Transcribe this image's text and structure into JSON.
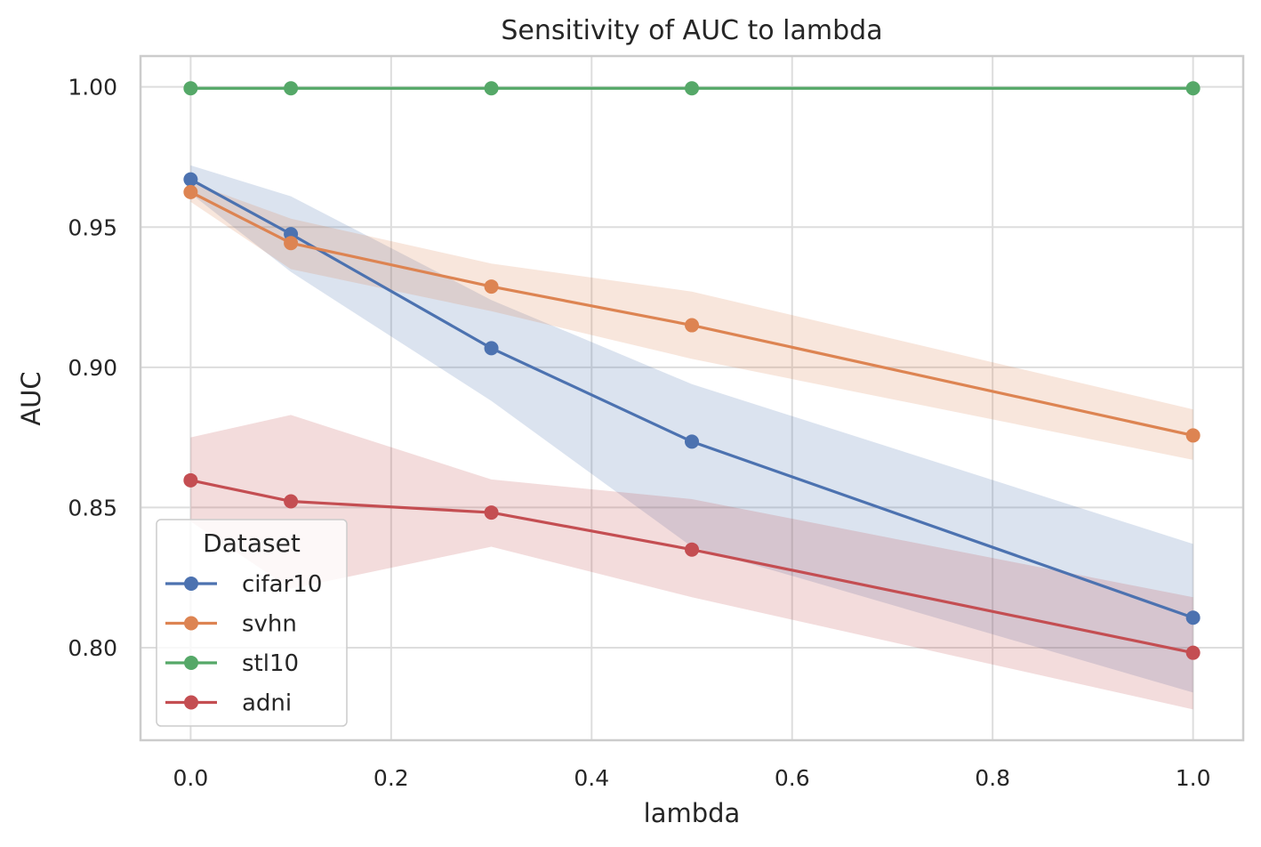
{
  "chart_data": {
    "type": "line",
    "title": "Sensitivity of AUC to lambda",
    "xlabel": "lambda",
    "ylabel": "AUC",
    "xlim": [
      -0.05,
      1.05
    ],
    "ylim": [
      0.767,
      1.011
    ],
    "xticks": [
      0.0,
      0.2,
      0.4,
      0.6,
      0.8,
      1.0
    ],
    "xtick_labels": [
      "0.0",
      "0.2",
      "0.4",
      "0.6",
      "0.8",
      "1.0"
    ],
    "yticks": [
      0.8,
      0.85,
      0.9,
      0.95,
      1.0
    ],
    "ytick_labels": [
      "0.80",
      "0.85",
      "0.90",
      "0.95",
      "1.00"
    ],
    "grid": true,
    "legend": {
      "title": "Dataset",
      "position": "lower-left"
    },
    "x": [
      0.0,
      0.1,
      0.3,
      0.5,
      1.0
    ],
    "series": [
      {
        "name": "cifar10",
        "color": "#4c72b0",
        "values": [
          0.967,
          0.9475,
          0.9068,
          0.8735,
          0.8107
        ],
        "band_upper": [
          0.972,
          0.961,
          0.924,
          0.894,
          0.837
        ],
        "band_lower": [
          0.962,
          0.934,
          0.888,
          0.836,
          0.784
        ]
      },
      {
        "name": "svhn",
        "color": "#dd8452",
        "values": [
          0.9625,
          0.9443,
          0.9288,
          0.915,
          0.8757
        ],
        "band_upper": [
          0.966,
          0.953,
          0.937,
          0.927,
          0.885
        ],
        "band_lower": [
          0.959,
          0.935,
          0.92,
          0.903,
          0.867
        ]
      },
      {
        "name": "stl10",
        "color": "#55a868",
        "values": [
          0.9995,
          0.9995,
          0.9995,
          0.9995,
          0.9995
        ],
        "band_upper": [
          0.9995,
          0.9995,
          0.9995,
          0.9995,
          0.9995
        ],
        "band_lower": [
          0.9995,
          0.9995,
          0.9995,
          0.9995,
          0.9995
        ]
      },
      {
        "name": "adni",
        "color": "#c44e52",
        "values": [
          0.8597,
          0.8522,
          0.8482,
          0.835,
          0.7982
        ],
        "band_upper": [
          0.875,
          0.883,
          0.86,
          0.853,
          0.818
        ],
        "band_lower": [
          0.845,
          0.821,
          0.836,
          0.818,
          0.778
        ]
      }
    ]
  }
}
